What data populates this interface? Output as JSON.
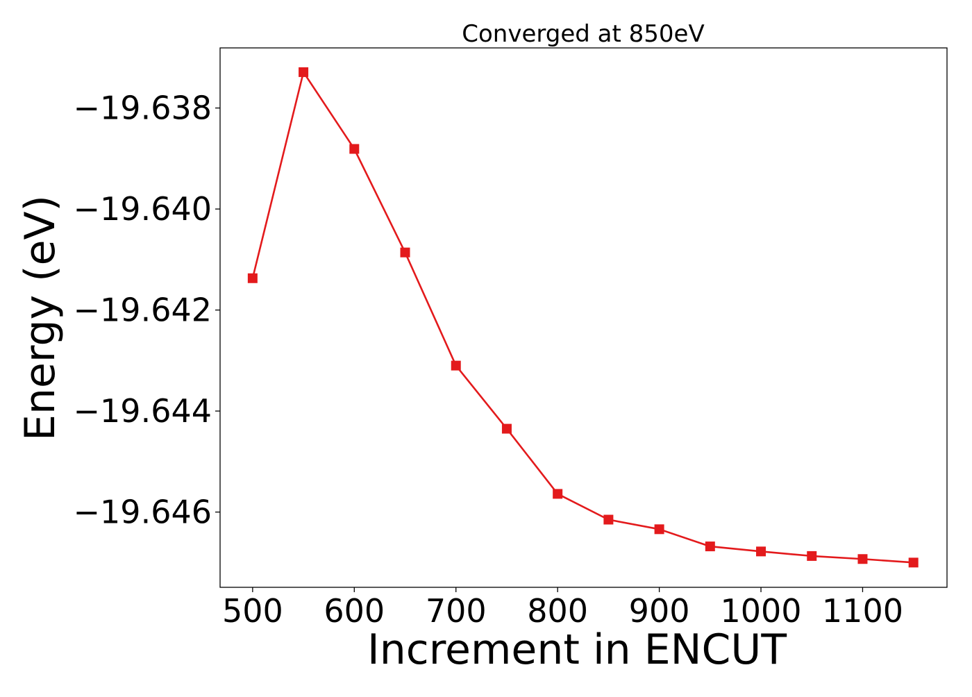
{
  "chart_data": {
    "type": "line",
    "title": "Converged at 850eV",
    "xlabel": "Increment in ENCUT",
    "ylabel": "Energy (eV)",
    "x": [
      500,
      550,
      600,
      650,
      700,
      750,
      800,
      850,
      900,
      950,
      1000,
      1050,
      1100,
      1150
    ],
    "series": [
      {
        "values": [
          -19.64137,
          -19.63729,
          -19.63881,
          -19.64086,
          -19.6431,
          -19.64435,
          -19.64564,
          -19.64615,
          -19.64634,
          -19.64668,
          -19.64678,
          -19.64687,
          -19.64693,
          -19.647
        ],
        "color": "#e31a1c",
        "marker": "square"
      }
    ],
    "xticks": [
      500,
      600,
      700,
      800,
      900,
      1000,
      1100
    ],
    "yticks": [
      -19.638,
      -19.64,
      -19.642,
      -19.644,
      -19.646
    ],
    "ytick_labels": [
      "−19.638",
      "−19.640",
      "−19.642",
      "−19.644",
      "−19.646"
    ],
    "xlim": [
      468,
      1183
    ],
    "ylim": [
      -19.64749,
      -19.63681
    ],
    "grid": false,
    "legend": false
  }
}
